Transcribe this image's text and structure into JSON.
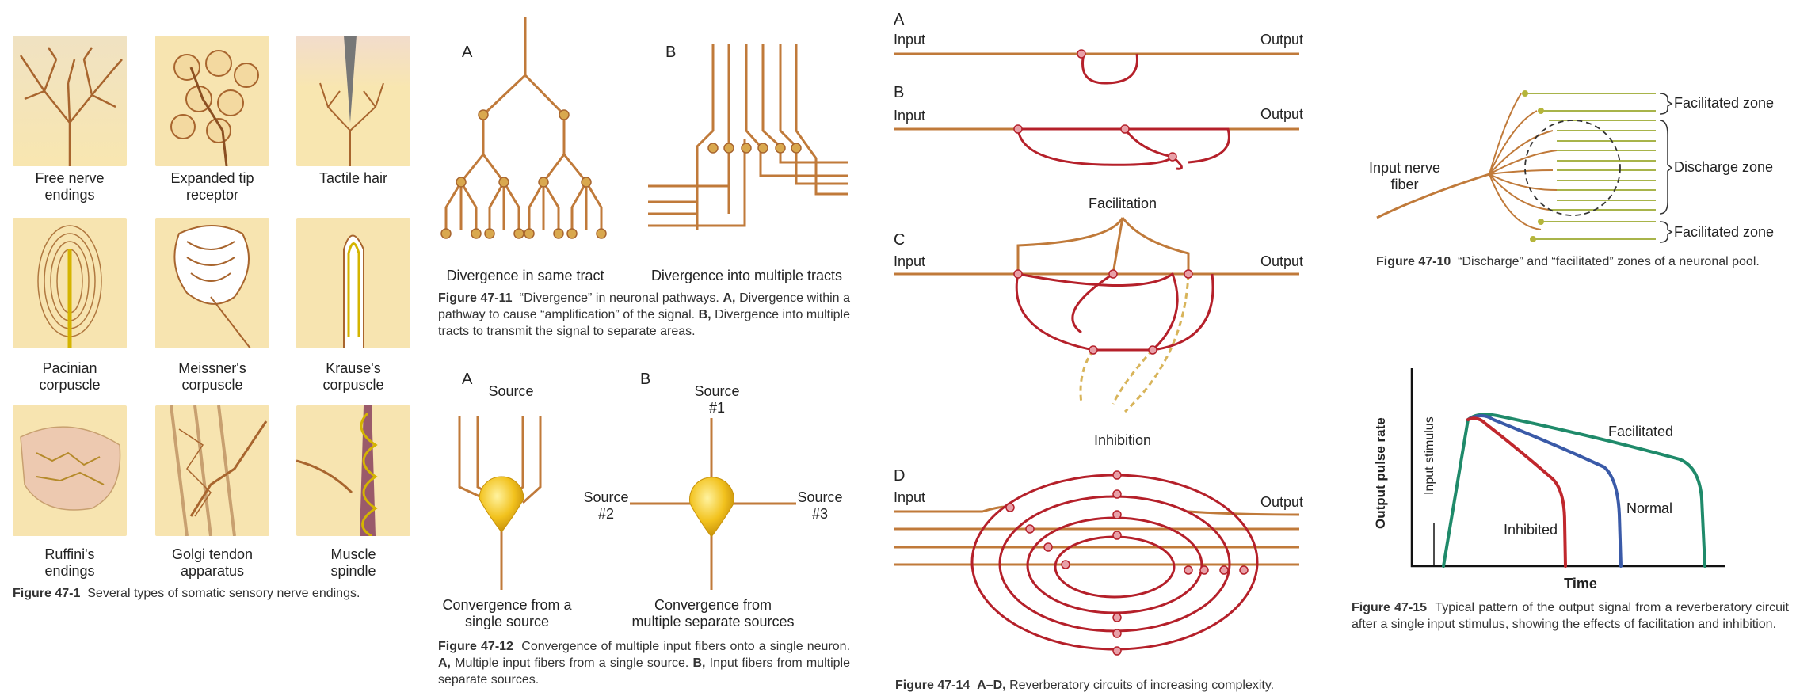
{
  "fig471": {
    "cells": [
      {
        "label1": "Free nerve",
        "label2": "endings"
      },
      {
        "label1": "Expanded tip",
        "label2": "receptor"
      },
      {
        "label1": "Tactile hair",
        "label2": ""
      },
      {
        "label1": "Pacinian",
        "label2": "corpuscle"
      },
      {
        "label1": "Meissner's",
        "label2": "corpuscle"
      },
      {
        "label1": "Krause's",
        "label2": "corpuscle"
      },
      {
        "label1": "Ruffini's",
        "label2": "endings"
      },
      {
        "label1": "Golgi tendon",
        "label2": "apparatus"
      },
      {
        "label1": "Muscle",
        "label2": "spindle"
      }
    ],
    "caption_num": "Figure 47-1",
    "caption_text": "Several types of somatic sensory nerve endings."
  },
  "fig4711": {
    "letter_a": "A",
    "letter_b": "B",
    "label_a": "Divergence in same tract",
    "label_b": "Divergence into multiple tracts",
    "caption_num": "Figure 47-11",
    "caption_l1": "“Divergence” in neuronal pathways.",
    "caption_a": "A,",
    "caption_l2": "Divergence within a pathway to cause “amplification” of the signal.",
    "caption_b": "B,",
    "caption_l3": "Divergence into multiple tracts to transmit the signal to separate areas."
  },
  "fig4712": {
    "letter_a": "A",
    "letter_b": "B",
    "source": "Source",
    "source1": "Source",
    "source1_num": "#1",
    "source2": "Source",
    "source2_num": "#2",
    "source3": "Source",
    "source3_num": "#3",
    "label_a1": "Convergence from a",
    "label_a2": "single source",
    "label_b1": "Convergence from",
    "label_b2": "multiple separate sources",
    "caption_num": "Figure 47-12",
    "caption_l1": "Convergence of multiple input fibers onto a single neuron.",
    "caption_a": "A,",
    "caption_l2": "Multiple input fibers from a single source.",
    "caption_b": "B,",
    "caption_l3": "Input fibers from multiple separate sources."
  },
  "fig4714": {
    "letters": [
      "A",
      "B",
      "C",
      "D"
    ],
    "input": "Input",
    "output": "Output",
    "facilitation": "Facilitation",
    "inhibition": "Inhibition",
    "caption_num": "Figure 47-14",
    "caption_range": "A–D,",
    "caption_text": "Reverberatory circuits of increasing complexity."
  },
  "fig4710": {
    "input_label1": "Input nerve",
    "input_label2": "fiber",
    "facilitated_top": "Facilitated zone",
    "discharge": "Discharge zone",
    "facilitated_bottom": "Facilitated zone",
    "caption_num": "Figure 47-10",
    "caption_text": "“Discharge” and “facilitated” zones of a neuronal pool."
  },
  "fig4715": {
    "ylabel": "Output pulse rate",
    "xlabel": "Time",
    "input_stimulus": "Input stimulus",
    "facilitated": "Facilitated",
    "normal": "Normal",
    "inhibited": "Inhibited",
    "colors": {
      "facilitated": "#1f8a6a",
      "normal": "#3a5aa8",
      "inhibited": "#c0272d"
    },
    "caption_num": "Figure 47-15",
    "caption_text": "Typical pattern of the output signal from a reverberatory circuit after a single input stimulus, showing the effects of facilitation and inhibition."
  },
  "colors": {
    "nerve": "#c07a3a",
    "circuit": "#b5202a",
    "dashed": "#d8b45a",
    "thumb_bg": "#f6e2a8"
  }
}
